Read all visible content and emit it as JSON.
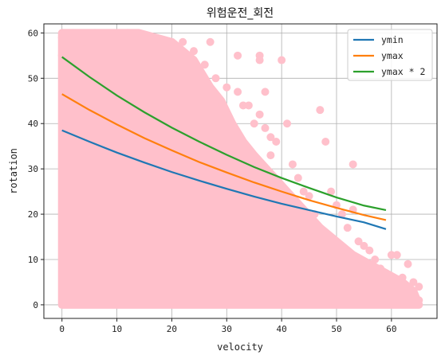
{
  "chart_data": {
    "type": "scatter",
    "title": "위험운전_회전",
    "xlabel": "velocity",
    "ylabel": "rotation",
    "xlim": [
      -3.3,
      68.3
    ],
    "ylim": [
      -3,
      62
    ],
    "x_ticks": [
      0,
      10,
      20,
      30,
      40,
      50,
      60
    ],
    "y_ticks": [
      0,
      10,
      20,
      30,
      40,
      50,
      60
    ],
    "grid": true,
    "legend_position": "top-right",
    "scatter_color": "#ffc0cb",
    "scatter_points": [
      [
        0,
        59
      ],
      [
        2,
        60
      ],
      [
        4,
        58
      ],
      [
        6,
        60
      ],
      [
        8,
        59
      ],
      [
        10,
        57
      ],
      [
        12,
        60
      ],
      [
        14,
        58
      ],
      [
        16,
        59
      ],
      [
        18,
        57
      ],
      [
        20,
        58
      ],
      [
        22,
        58
      ],
      [
        24,
        56
      ],
      [
        27,
        58
      ],
      [
        0,
        55
      ],
      [
        5,
        57
      ],
      [
        11,
        56
      ],
      [
        17,
        55
      ],
      [
        23,
        54
      ],
      [
        26,
        53
      ],
      [
        28,
        50
      ],
      [
        30,
        48
      ],
      [
        32,
        47
      ],
      [
        33,
        44
      ],
      [
        34,
        44
      ],
      [
        35,
        40
      ],
      [
        36,
        42
      ],
      [
        37,
        47
      ],
      [
        38,
        37
      ],
      [
        39,
        36
      ],
      [
        36,
        55
      ],
      [
        36,
        54
      ],
      [
        32,
        55
      ],
      [
        40,
        54
      ],
      [
        41,
        40
      ],
      [
        37,
        39
      ],
      [
        38,
        33
      ],
      [
        42,
        31
      ],
      [
        43,
        28
      ],
      [
        44,
        25
      ],
      [
        45,
        24
      ],
      [
        46,
        20
      ],
      [
        47,
        43
      ],
      [
        48,
        36
      ],
      [
        49,
        25
      ],
      [
        50,
        22
      ],
      [
        51,
        20
      ],
      [
        52,
        17
      ],
      [
        53,
        31
      ],
      [
        53,
        21
      ],
      [
        54,
        14
      ],
      [
        55,
        13
      ],
      [
        56,
        12
      ],
      [
        57,
        10
      ],
      [
        58,
        8
      ],
      [
        59,
        7
      ],
      [
        60,
        11
      ],
      [
        61,
        11
      ],
      [
        62,
        6
      ],
      [
        63,
        9
      ],
      [
        64,
        5
      ],
      [
        65,
        4
      ],
      [
        65,
        1
      ],
      [
        60,
        3
      ],
      [
        62,
        1
      ],
      [
        58,
        2
      ],
      [
        55,
        6
      ],
      [
        50,
        8
      ],
      [
        45,
        9
      ],
      [
        40,
        12
      ],
      [
        35,
        22
      ],
      [
        30,
        25
      ],
      [
        25,
        30
      ]
    ],
    "scatter_fill": [
      [
        0,
        60
      ],
      [
        3,
        60
      ],
      [
        14,
        60
      ],
      [
        20,
        58
      ],
      [
        24,
        54
      ],
      [
        27,
        48
      ],
      [
        29,
        45
      ],
      [
        31,
        40
      ],
      [
        33,
        36
      ],
      [
        35,
        33
      ],
      [
        38,
        29
      ],
      [
        41,
        25
      ],
      [
        44,
        21
      ],
      [
        47,
        17
      ],
      [
        50,
        14
      ],
      [
        53,
        11
      ],
      [
        56,
        9
      ],
      [
        59,
        7
      ],
      [
        62,
        5
      ],
      [
        64,
        3
      ],
      [
        65,
        0
      ],
      [
        0,
        0
      ]
    ],
    "series": [
      {
        "name": "ymin",
        "color": "#1f77b4",
        "x": [
          0,
          5,
          10,
          15,
          20,
          25,
          30,
          35,
          40,
          45,
          50,
          55,
          59
        ],
        "y": [
          38.5,
          36.0,
          33.6,
          31.4,
          29.3,
          27.4,
          25.6,
          23.9,
          22.3,
          20.9,
          19.5,
          18.2,
          16.7
        ]
      },
      {
        "name": "ymax",
        "color": "#ff7f0e",
        "x": [
          0,
          5,
          10,
          15,
          20,
          25,
          30,
          35,
          40,
          45,
          50,
          55,
          59
        ],
        "y": [
          46.5,
          43.0,
          39.8,
          36.8,
          34.1,
          31.5,
          29.2,
          27.0,
          25.0,
          23.1,
          21.4,
          19.8,
          18.7
        ]
      },
      {
        "name": "ymax * 2",
        "color": "#2ca02c",
        "x": [
          0,
          5,
          10,
          15,
          20,
          25,
          30,
          35,
          40,
          45,
          50,
          55,
          59
        ],
        "y": [
          54.7,
          50.3,
          46.2,
          42.5,
          39.1,
          36.0,
          33.1,
          30.4,
          28.0,
          25.8,
          23.7,
          21.9,
          20.9
        ]
      }
    ]
  }
}
